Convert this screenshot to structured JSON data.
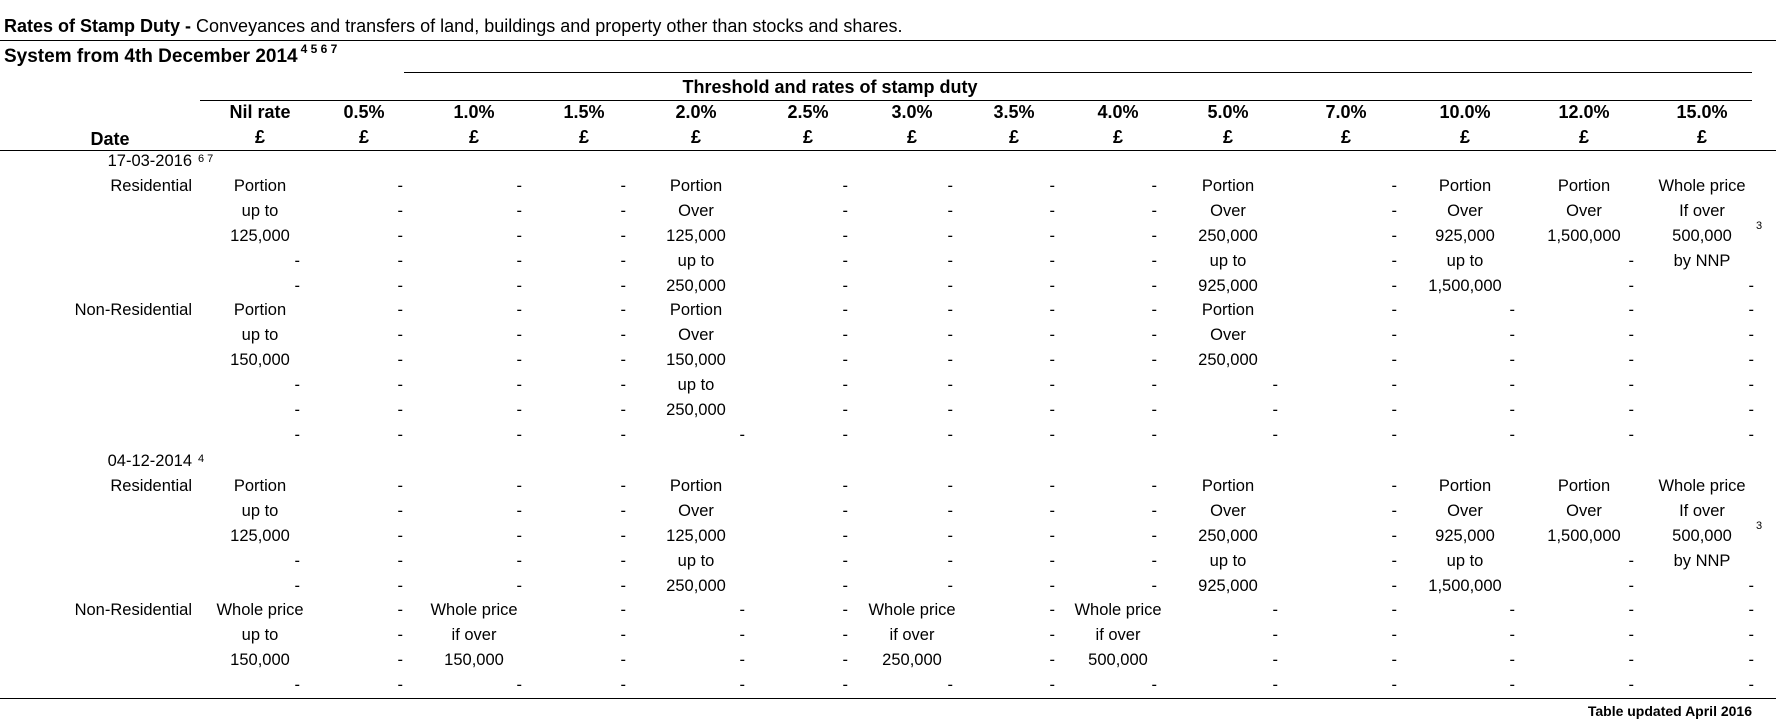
{
  "title": {
    "lead": "Rates of Stamp Duty - ",
    "rest": "Conveyances and transfers of land, buildings and property other than stocks and shares."
  },
  "subtitle": {
    "text": "System from 4th December 2014",
    "footnotes": "4 5 6 7"
  },
  "group_header": "Threshold and rates of stamp duty",
  "date_header": "Date",
  "currency_symbol": "£",
  "columns": [
    "Nil rate",
    "0.5%",
    "1.0%",
    "1.5%",
    "2.0%",
    "2.5%",
    "3.0%",
    "3.5%",
    "4.0%",
    "5.0%",
    "7.0%",
    "10.0%",
    "12.0%",
    "15.0%"
  ],
  "sections": [
    {
      "date": "17-03-2016",
      "date_footnote": "6 7",
      "groups": [
        {
          "label": "Residential",
          "row_footnote": "3",
          "rows": [
            [
              "Portion",
              "-",
              "-",
              "-",
              "Portion",
              "-",
              "-",
              "-",
              "-",
              "Portion",
              "-",
              "Portion",
              "Portion",
              "Whole price"
            ],
            [
              "up to",
              "-",
              "-",
              "-",
              "Over",
              "-",
              "-",
              "-",
              "-",
              "Over",
              "-",
              "Over",
              "Over",
              "If over"
            ],
            [
              "125,000",
              "-",
              "-",
              "-",
              "125,000",
              "-",
              "-",
              "-",
              "-",
              "250,000",
              "-",
              "925,000",
              "1,500,000",
              "500,000"
            ],
            [
              "-",
              "-",
              "-",
              "-",
              "up to",
              "-",
              "-",
              "-",
              "-",
              "up to",
              "-",
              "up to",
              "-",
              "by NNP"
            ],
            [
              "-",
              "-",
              "-",
              "-",
              "250,000",
              "-",
              "-",
              "-",
              "-",
              "925,000",
              "-",
              "1,500,000",
              "-",
              "-"
            ]
          ]
        },
        {
          "label": "Non-Residential",
          "row_footnote": "",
          "rows": [
            [
              "Portion",
              "-",
              "-",
              "-",
              "Portion",
              "-",
              "-",
              "-",
              "-",
              "Portion",
              "-",
              "-",
              "-",
              "-"
            ],
            [
              "up to",
              "-",
              "-",
              "-",
              "Over",
              "-",
              "-",
              "-",
              "-",
              "Over",
              "-",
              "-",
              "-",
              "-"
            ],
            [
              "150,000",
              "-",
              "-",
              "-",
              "150,000",
              "-",
              "-",
              "-",
              "-",
              "250,000",
              "-",
              "-",
              "-",
              "-"
            ],
            [
              "-",
              "-",
              "-",
              "-",
              "up to",
              "-",
              "-",
              "-",
              "-",
              "-",
              "-",
              "-",
              "-",
              "-"
            ],
            [
              "-",
              "-",
              "-",
              "-",
              "250,000",
              "-",
              "-",
              "-",
              "-",
              "-",
              "-",
              "-",
              "-",
              "-"
            ],
            [
              "-",
              "-",
              "-",
              "-",
              "-",
              "-",
              "-",
              "-",
              "-",
              "-",
              "-",
              "-",
              "-",
              "-"
            ]
          ]
        }
      ]
    },
    {
      "date": "04-12-2014",
      "date_footnote": "4",
      "groups": [
        {
          "label": "Residential",
          "row_footnote": "3",
          "rows": [
            [
              "Portion",
              "-",
              "-",
              "-",
              "Portion",
              "-",
              "-",
              "-",
              "-",
              "Portion",
              "-",
              "Portion",
              "Portion",
              "Whole price"
            ],
            [
              "up to",
              "-",
              "-",
              "-",
              "Over",
              "-",
              "-",
              "-",
              "-",
              "Over",
              "-",
              "Over",
              "Over",
              "If over"
            ],
            [
              "125,000",
              "-",
              "-",
              "-",
              "125,000",
              "-",
              "-",
              "-",
              "-",
              "250,000",
              "-",
              "925,000",
              "1,500,000",
              "500,000"
            ],
            [
              "-",
              "-",
              "-",
              "-",
              "up to",
              "-",
              "-",
              "-",
              "-",
              "up to",
              "-",
              "up to",
              "-",
              "by NNP"
            ],
            [
              "-",
              "-",
              "-",
              "-",
              "250,000",
              "-",
              "-",
              "-",
              "-",
              "925,000",
              "-",
              "1,500,000",
              "-",
              "-"
            ]
          ]
        },
        {
          "label": "Non-Residential",
          "row_footnote": "",
          "rows": [
            [
              "Whole price",
              "-",
              "Whole price",
              "-",
              "-",
              "-",
              "Whole price",
              "-",
              "Whole price",
              "-",
              "-",
              "-",
              "-",
              "-"
            ],
            [
              "up to",
              "-",
              "if over",
              "-",
              "-",
              "-",
              "if over",
              "-",
              "if over",
              "-",
              "-",
              "-",
              "-",
              "-"
            ],
            [
              "150,000",
              "-",
              "150,000",
              "-",
              "-",
              "-",
              "250,000",
              "-",
              "500,000",
              "-",
              "-",
              "-",
              "-",
              "-"
            ],
            [
              "-",
              "-",
              "-",
              "-",
              "-",
              "-",
              "-",
              "-",
              "-",
              "-",
              "-",
              "-",
              "-",
              "-"
            ]
          ]
        }
      ]
    }
  ],
  "footer": "Table updated April 2016"
}
